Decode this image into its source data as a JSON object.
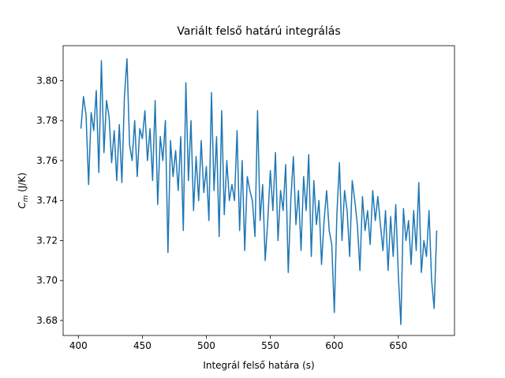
{
  "chart_data": {
    "type": "line",
    "title": "Variált felső határú integrálás",
    "xlabel": "Integrál felső határa (s)",
    "ylabel": {
      "symbol": "C",
      "subscript": "m",
      "unit": "(J/K)"
    },
    "xlim": [
      388.1,
      693.9
    ],
    "ylim": [
      3.6725,
      3.8175
    ],
    "xticks": [
      400,
      450,
      500,
      550,
      600,
      650
    ],
    "yticks": [
      3.68,
      {
        "value": 3.7,
        "label": "3.70"
      },
      3.72,
      3.74,
      3.76,
      3.78,
      {
        "value": 3.8,
        "label": "3.80"
      }
    ],
    "x": [
      402,
      404,
      406,
      408,
      410,
      412,
      414,
      416,
      418,
      420,
      422,
      424,
      426,
      428,
      430,
      432,
      434,
      436,
      438,
      440,
      442,
      444,
      446,
      448,
      450,
      452,
      454,
      456,
      458,
      460,
      462,
      464,
      466,
      468,
      470,
      472,
      474,
      476,
      478,
      480,
      482,
      484,
      486,
      488,
      490,
      492,
      494,
      496,
      498,
      500,
      502,
      504,
      506,
      508,
      510,
      512,
      514,
      516,
      518,
      520,
      522,
      524,
      526,
      528,
      530,
      532,
      534,
      536,
      538,
      540,
      542,
      544,
      546,
      548,
      550,
      552,
      554,
      556,
      558,
      560,
      562,
      564,
      566,
      568,
      570,
      572,
      574,
      576,
      578,
      580,
      582,
      584,
      586,
      588,
      590,
      592,
      594,
      596,
      598,
      600,
      602,
      604,
      606,
      608,
      610,
      612,
      614,
      616,
      618,
      620,
      622,
      624,
      626,
      628,
      630,
      632,
      634,
      636,
      638,
      640,
      642,
      644,
      646,
      648,
      650,
      652,
      654,
      656,
      658,
      660,
      662,
      664,
      666,
      668,
      670,
      672,
      674,
      676,
      678,
      680
    ],
    "series": [
      {
        "color": "#1f77b4",
        "values": [
          3.776,
          3.792,
          3.783,
          3.748,
          3.784,
          3.775,
          3.795,
          3.754,
          3.81,
          3.764,
          3.79,
          3.782,
          3.759,
          3.775,
          3.75,
          3.778,
          3.749,
          3.792,
          3.811,
          3.768,
          3.76,
          3.78,
          3.752,
          3.776,
          3.771,
          3.785,
          3.76,
          3.776,
          3.75,
          3.79,
          3.738,
          3.772,
          3.76,
          3.78,
          3.714,
          3.77,
          3.752,
          3.765,
          3.745,
          3.772,
          3.725,
          3.799,
          3.75,
          3.78,
          3.735,
          3.762,
          3.74,
          3.77,
          3.744,
          3.757,
          3.73,
          3.794,
          3.745,
          3.772,
          3.722,
          3.785,
          3.733,
          3.76,
          3.74,
          3.748,
          3.74,
          3.775,
          3.725,
          3.76,
          3.715,
          3.752,
          3.745,
          3.74,
          3.722,
          3.785,
          3.73,
          3.748,
          3.71,
          3.73,
          3.755,
          3.735,
          3.764,
          3.72,
          3.745,
          3.735,
          3.758,
          3.704,
          3.74,
          3.762,
          3.728,
          3.745,
          3.715,
          3.752,
          3.735,
          3.763,
          3.712,
          3.75,
          3.728,
          3.74,
          3.708,
          3.73,
          3.745,
          3.725,
          3.718,
          3.684,
          3.733,
          3.759,
          3.72,
          3.745,
          3.735,
          3.712,
          3.75,
          3.74,
          3.728,
          3.705,
          3.742,
          3.725,
          3.735,
          3.718,
          3.745,
          3.73,
          3.742,
          3.728,
          3.715,
          3.735,
          3.705,
          3.732,
          3.712,
          3.738,
          3.703,
          3.678,
          3.736,
          3.72,
          3.73,
          3.708,
          3.735,
          3.715,
          3.749,
          3.704,
          3.72,
          3.712,
          3.735,
          3.7,
          3.686,
          3.725
        ]
      }
    ]
  }
}
